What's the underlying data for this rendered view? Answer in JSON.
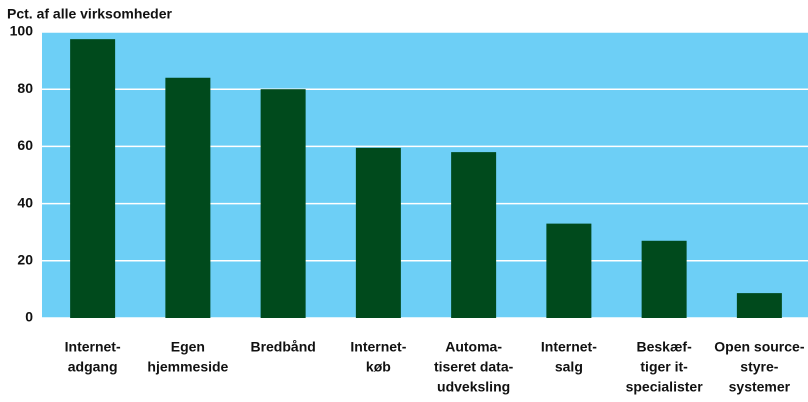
{
  "chart_data": {
    "type": "bar",
    "y_label": "Pct. af alle virksomheder",
    "categories": [
      [
        "Internet-",
        "adgang"
      ],
      [
        "Egen",
        "hjemmeside"
      ],
      [
        "Bredbånd"
      ],
      [
        "Internet-",
        "køb"
      ],
      [
        "Automa-",
        "tiseret data-",
        "udveksling"
      ],
      [
        "Internet-",
        "salg"
      ],
      [
        "Beskæf-",
        "tiger it-",
        "specialister"
      ],
      [
        "Open source-",
        "styre-",
        "systemer"
      ]
    ],
    "values": [
      97.5,
      84,
      80,
      59.5,
      58,
      33,
      27,
      8.7
    ],
    "color": "#004a1c",
    "background": "#6dcff6",
    "ylim": [
      0,
      100
    ],
    "yticks": [
      0,
      20,
      40,
      60,
      80,
      100
    ],
    "grid": true
  }
}
